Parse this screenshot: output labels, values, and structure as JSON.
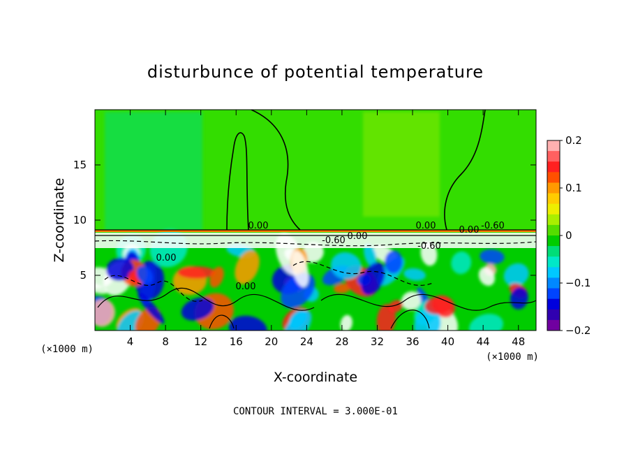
{
  "chart_data": {
    "type": "heatmap",
    "title": "disturbunce of potential temperature",
    "xlabel": "X-coordinate",
    "ylabel": "Z-coordinate",
    "x_unit": "(×1000 m)",
    "z_unit": "(×1000 m)",
    "xlim": [
      0,
      50
    ],
    "ylim": [
      0,
      20
    ],
    "x_ticks": [
      4,
      8,
      12,
      16,
      20,
      24,
      28,
      32,
      36,
      40,
      44,
      48
    ],
    "x_tick_labels": [
      "4",
      "8",
      "12",
      "16",
      "20",
      "24",
      "28",
      "32",
      "36",
      "40",
      "44",
      "48"
    ],
    "y_ticks": [
      5,
      10,
      15
    ],
    "y_tick_labels": [
      "5",
      "10",
      "15"
    ],
    "colorbar": {
      "range": [
        -0.2,
        0.2
      ],
      "ticks": [
        0.2,
        0.1,
        0,
        -0.1,
        -0.2
      ],
      "tick_labels": [
        "0.2",
        "0.1",
        "0",
        "−0.1",
        "−0.2"
      ],
      "colors": [
        "#ffb0b0",
        "#ff6060",
        "#ff2020",
        "#ff5000",
        "#ff9900",
        "#ffcc00",
        "#eeee00",
        "#aaee00",
        "#55dd00",
        "#00cc00",
        "#00dd77",
        "#00e8c8",
        "#00c8ff",
        "#0088ff",
        "#0044ff",
        "#0000dd",
        "#3000b0",
        "#7000a0"
      ]
    },
    "contour_interval": "CONTOUR INTERVAL = 3.000E-01",
    "contour_labels": [
      "0.00",
      "0.00",
      "0.00",
      "-0.60",
      "-0.60",
      "0.00",
      "-0.60",
      "0.00",
      "0.00"
    ]
  }
}
